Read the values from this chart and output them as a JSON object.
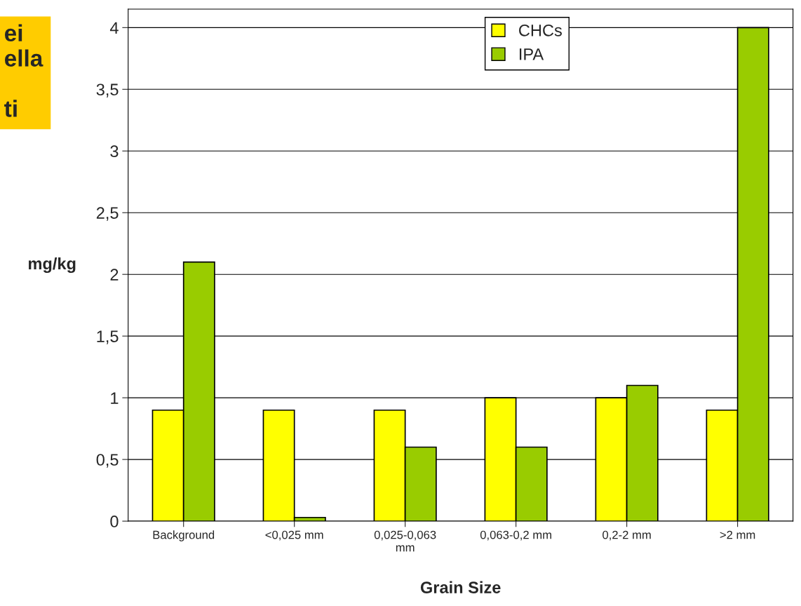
{
  "chart_data": {
    "type": "bar",
    "xlabel": "Grain Size",
    "ylabel": "mg/kg",
    "categories": [
      "Background",
      "<0,025 mm",
      "0,025-0,063\nmm",
      "0,063-0,2 mm",
      "0,2-2 mm",
      ">2 mm"
    ],
    "series": [
      {
        "name": "CHCs",
        "color": "#ffff00",
        "values": [
          0.9,
          0.9,
          0.9,
          1.0,
          1.0,
          0.9
        ]
      },
      {
        "name": "IPA",
        "color": "#99cc00",
        "values": [
          2.1,
          0.03,
          0.6,
          0.6,
          1.1,
          4.0
        ]
      }
    ],
    "ylim": [
      0,
      4.15
    ],
    "yticks": [
      0,
      {
        "value": 0.5,
        "label": "0,5"
      },
      1,
      {
        "value": 1.5,
        "label": "1,5"
      },
      2,
      {
        "value": 2.5,
        "label": "2,5"
      },
      3,
      {
        "value": 3.5,
        "label": "3,5"
      },
      4
    ],
    "grid": "y",
    "legend": "top",
    "annotations": [
      "ei\nella\n\nti"
    ]
  }
}
